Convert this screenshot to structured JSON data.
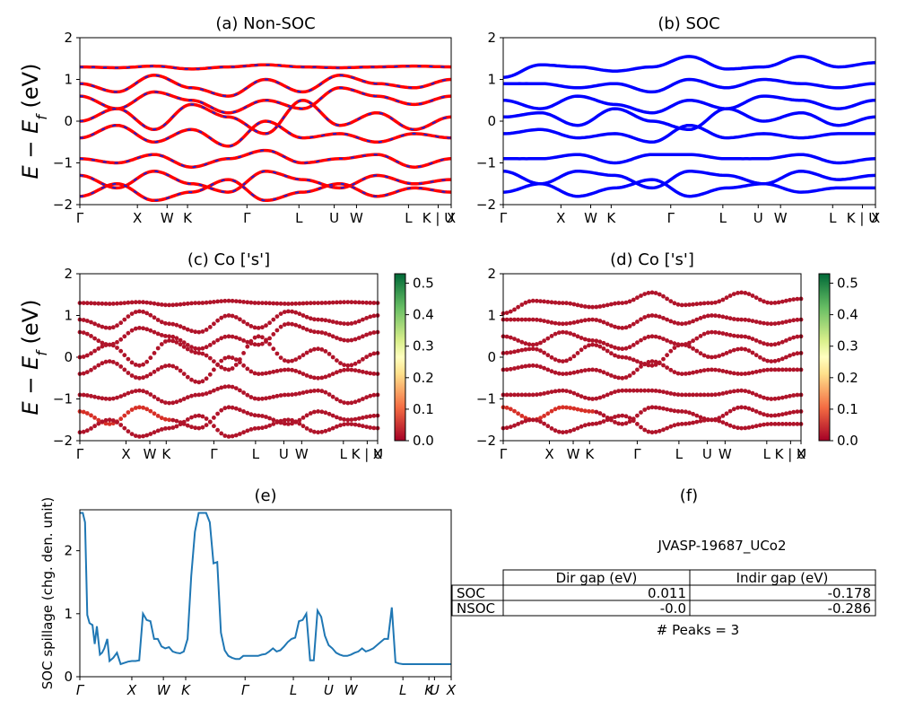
{
  "chart_data": [
    {
      "id": "a",
      "type": "line",
      "title": "(a) Non-SOC",
      "ylabel": "E − E_f (eV)",
      "ylim": [
        -2,
        2
      ],
      "yticks": [
        "−2",
        "−1",
        "0",
        "1",
        "2"
      ],
      "xticks": [
        "Γ",
        "X",
        "W",
        "K",
        "Γ",
        "L",
        "U",
        "W",
        "L",
        "K | U",
        "X"
      ],
      "series": [
        {
          "color": "#ff0000",
          "values": [
            1.3,
            1.28,
            1.32,
            1.25,
            1.3,
            1.35,
            1.3,
            1.28,
            1.3,
            1.32,
            1.3
          ]
        },
        {
          "color": "#ff0000",
          "values": [
            0.9,
            0.7,
            1.1,
            0.8,
            0.6,
            1.0,
            0.7,
            1.1,
            0.9,
            0.8,
            1.0
          ]
        },
        {
          "color": "#ff0000",
          "values": [
            0.6,
            0.3,
            0.7,
            0.5,
            0.2,
            0.5,
            0.3,
            0.8,
            0.6,
            0.4,
            0.6
          ]
        },
        {
          "color": "#ff0000",
          "values": [
            0.0,
            0.3,
            -0.2,
            0.4,
            0.1,
            -0.3,
            0.5,
            -0.1,
            0.2,
            -0.2,
            0.1
          ]
        },
        {
          "color": "#ff0000",
          "values": [
            -0.4,
            -0.1,
            -0.5,
            -0.2,
            -0.6,
            0.0,
            -0.4,
            -0.3,
            -0.5,
            -0.3,
            -0.4
          ]
        },
        {
          "color": "#ff0000",
          "values": [
            -0.9,
            -1.0,
            -0.8,
            -1.1,
            -0.9,
            -0.7,
            -1.0,
            -0.9,
            -0.8,
            -1.1,
            -0.9
          ]
        },
        {
          "color": "#ff0000",
          "values": [
            -1.3,
            -1.6,
            -1.2,
            -1.5,
            -1.7,
            -1.2,
            -1.4,
            -1.6,
            -1.3,
            -1.5,
            -1.4
          ]
        },
        {
          "color": "#ff0000",
          "values": [
            -1.8,
            -1.5,
            -1.9,
            -1.7,
            -1.4,
            -1.9,
            -1.7,
            -1.5,
            -1.8,
            -1.6,
            -1.7
          ]
        }
      ]
    },
    {
      "id": "b",
      "type": "line",
      "title": "(b) SOC",
      "ylim": [
        -2,
        2
      ],
      "yticks": [
        "−2",
        "−1",
        "0",
        "1",
        "2"
      ],
      "xticks": [
        "Γ",
        "X",
        "W",
        "K",
        "Γ",
        "L",
        "U",
        "W",
        "L",
        "K | U",
        "X"
      ],
      "series": [
        {
          "color": "#0000ff",
          "values": [
            1.05,
            1.35,
            1.3,
            1.2,
            1.3,
            1.55,
            1.25,
            1.3,
            1.55,
            1.3,
            1.4
          ]
        },
        {
          "color": "#0000ff",
          "values": [
            0.9,
            0.9,
            0.8,
            0.9,
            0.7,
            1.0,
            0.8,
            1.0,
            0.9,
            0.8,
            0.9
          ]
        },
        {
          "color": "#0000ff",
          "values": [
            0.5,
            0.3,
            0.6,
            0.4,
            0.2,
            0.5,
            0.3,
            0.6,
            0.5,
            0.3,
            0.5
          ]
        },
        {
          "color": "#0000ff",
          "values": [
            0.1,
            0.2,
            -0.1,
            0.3,
            0.0,
            -0.2,
            0.3,
            0.0,
            0.2,
            -0.1,
            0.1
          ]
        },
        {
          "color": "#0000ff",
          "values": [
            -0.3,
            -0.2,
            -0.4,
            -0.3,
            -0.5,
            -0.1,
            -0.4,
            -0.3,
            -0.4,
            -0.3,
            -0.3
          ]
        },
        {
          "color": "#0000ff",
          "values": [
            -0.9,
            -0.9,
            -0.8,
            -1.0,
            -0.8,
            -0.8,
            -0.9,
            -0.9,
            -0.8,
            -1.0,
            -0.9
          ]
        },
        {
          "color": "#0000ff",
          "values": [
            -1.2,
            -1.5,
            -1.2,
            -1.3,
            -1.6,
            -1.2,
            -1.3,
            -1.5,
            -1.2,
            -1.4,
            -1.3
          ]
        },
        {
          "color": "#0000ff",
          "values": [
            -1.7,
            -1.5,
            -1.8,
            -1.6,
            -1.4,
            -1.8,
            -1.6,
            -1.5,
            -1.7,
            -1.6,
            -1.6
          ]
        }
      ]
    },
    {
      "id": "c",
      "type": "scatter",
      "title": "(c)  Co ['s']",
      "ylabel": "E − E_f (eV)",
      "ylim": [
        -2,
        2
      ],
      "yticks": [
        "−2",
        "−1",
        "0",
        "1",
        "2"
      ],
      "xticks": [
        "Γ",
        "X",
        "W",
        "K",
        "Γ",
        "L",
        "U",
        "W",
        "L",
        "K | U",
        "X"
      ],
      "colorbar": {
        "min": 0.0,
        "max": 0.53,
        "ticks": [
          "0.0",
          "0.1",
          "0.2",
          "0.3",
          "0.4",
          "0.5"
        ]
      },
      "series": [
        {
          "values": [
            1.3,
            1.28,
            1.32,
            1.25,
            1.3,
            1.35,
            1.3,
            1.28,
            1.3,
            1.32,
            1.3
          ]
        },
        {
          "values": [
            0.9,
            0.7,
            1.1,
            0.8,
            0.6,
            1.0,
            0.7,
            1.1,
            0.9,
            0.8,
            1.0
          ]
        },
        {
          "values": [
            0.6,
            0.3,
            0.7,
            0.5,
            0.2,
            0.5,
            0.3,
            0.8,
            0.6,
            0.4,
            0.6
          ]
        },
        {
          "values": [
            0.0,
            0.3,
            -0.2,
            0.4,
            0.1,
            -0.3,
            0.5,
            -0.1,
            0.2,
            -0.2,
            0.1
          ]
        },
        {
          "values": [
            -0.4,
            -0.1,
            -0.5,
            -0.2,
            -0.6,
            0.0,
            -0.4,
            -0.3,
            -0.5,
            -0.3,
            -0.4
          ]
        },
        {
          "values": [
            -0.9,
            -1.0,
            -0.8,
            -1.1,
            -0.9,
            -0.7,
            -1.0,
            -0.9,
            -0.8,
            -1.1,
            -0.9
          ]
        },
        {
          "values": [
            -1.3,
            -1.6,
            -1.2,
            -1.5,
            -1.7,
            -1.2,
            -1.4,
            -1.6,
            -1.3,
            -1.5,
            -1.4
          ]
        },
        {
          "values": [
            -1.8,
            -1.5,
            -1.9,
            -1.7,
            -1.4,
            -1.9,
            -1.7,
            -1.5,
            -1.8,
            -1.6,
            -1.7
          ]
        }
      ]
    },
    {
      "id": "d",
      "type": "scatter",
      "title": "(d) Co ['s']",
      "ylim": [
        -2,
        2
      ],
      "yticks": [
        "−2",
        "−1",
        "0",
        "1",
        "2"
      ],
      "xticks": [
        "Γ",
        "X",
        "W",
        "K",
        "Γ",
        "L",
        "U",
        "W",
        "L",
        "K | U",
        "X"
      ],
      "colorbar": {
        "min": 0.0,
        "max": 0.53,
        "ticks": [
          "0.0",
          "0.1",
          "0.2",
          "0.3",
          "0.4",
          "0.5"
        ]
      },
      "series": [
        {
          "values": [
            1.05,
            1.35,
            1.3,
            1.2,
            1.3,
            1.55,
            1.25,
            1.3,
            1.55,
            1.3,
            1.4
          ]
        },
        {
          "values": [
            0.9,
            0.9,
            0.8,
            0.9,
            0.7,
            1.0,
            0.8,
            1.0,
            0.9,
            0.8,
            0.9
          ]
        },
        {
          "values": [
            0.5,
            0.3,
            0.6,
            0.4,
            0.2,
            0.5,
            0.3,
            0.6,
            0.5,
            0.3,
            0.5
          ]
        },
        {
          "values": [
            0.1,
            0.2,
            -0.1,
            0.3,
            0.0,
            -0.2,
            0.3,
            0.0,
            0.2,
            -0.1,
            0.1
          ]
        },
        {
          "values": [
            -0.3,
            -0.2,
            -0.4,
            -0.3,
            -0.5,
            -0.1,
            -0.4,
            -0.3,
            -0.4,
            -0.3,
            -0.3
          ]
        },
        {
          "values": [
            -0.9,
            -0.9,
            -0.8,
            -1.0,
            -0.8,
            -0.8,
            -0.9,
            -0.9,
            -0.8,
            -1.0,
            -0.9
          ]
        },
        {
          "values": [
            -1.2,
            -1.5,
            -1.2,
            -1.3,
            -1.6,
            -1.2,
            -1.3,
            -1.5,
            -1.2,
            -1.4,
            -1.3
          ]
        },
        {
          "values": [
            -1.7,
            -1.5,
            -1.8,
            -1.6,
            -1.4,
            -1.8,
            -1.6,
            -1.5,
            -1.7,
            -1.6,
            -1.6
          ]
        }
      ]
    },
    {
      "id": "e",
      "type": "line",
      "title": "(e)",
      "ylabel": "SOC spillage (chg. den. unit)",
      "ylim": [
        0,
        2.65
      ],
      "yticks": [
        "0",
        "1",
        "2"
      ],
      "xticks": [
        "Γ",
        "X",
        "W",
        "K",
        "Γ",
        "L",
        "U",
        "W",
        "L",
        "K",
        "U",
        "X"
      ],
      "series": [
        {
          "color": "#1f77b4",
          "x": [
            0,
            0.04,
            0.07,
            0.1,
            0.13,
            0.17,
            0.2,
            0.23,
            0.27,
            0.3,
            0.33,
            0.37,
            0.4,
            0.45,
            0.5,
            0.55,
            0.6,
            0.65,
            0.7,
            0.75,
            0.8,
            0.85,
            0.9,
            0.95,
            1.0,
            1.05,
            1.1,
            1.15,
            1.2,
            1.25,
            1.3,
            1.35,
            1.4,
            1.45,
            1.5,
            1.55,
            1.6,
            1.65,
            1.7,
            1.75,
            1.8,
            1.85,
            1.9,
            1.95,
            2.0,
            2.05,
            2.1,
            2.15,
            2.2,
            2.25,
            2.3,
            2.35,
            2.4,
            2.45,
            2.5,
            2.55,
            2.6,
            2.65,
            2.7,
            2.75,
            2.8,
            2.85,
            2.9,
            2.95,
            3.0,
            3.05,
            3.1,
            3.15,
            3.2,
            3.25,
            3.3,
            3.35,
            3.4,
            3.45,
            3.5,
            3.55,
            3.6,
            3.65,
            3.7,
            3.75,
            3.8,
            3.85,
            3.9,
            3.95,
            4.0,
            4.05,
            4.1,
            4.15,
            4.2,
            4.25,
            4.3,
            4.35,
            4.4,
            4.45,
            4.5,
            4.55,
            4.6,
            4.65,
            4.7,
            4.75,
            4.8,
            4.85,
            4.9,
            4.95,
            5.0
          ],
          "values": [
            2.6,
            2.6,
            2.45,
            0.98,
            0.85,
            0.82,
            0.52,
            0.8,
            0.35,
            0.38,
            0.45,
            0.6,
            0.25,
            0.3,
            0.38,
            0.2,
            0.22,
            0.24,
            0.25,
            0.25,
            0.26,
            1.0,
            0.9,
            0.88,
            0.6,
            0.6,
            0.48,
            0.45,
            0.47,
            0.4,
            0.38,
            0.37,
            0.4,
            0.6,
            1.6,
            2.3,
            2.6,
            2.6,
            2.6,
            2.45,
            1.8,
            1.82,
            0.7,
            0.42,
            0.33,
            0.3,
            0.28,
            0.28,
            0.33,
            0.33,
            0.33,
            0.33,
            0.33,
            0.35,
            0.36,
            0.4,
            0.45,
            0.4,
            0.42,
            0.48,
            0.55,
            0.6,
            0.62,
            0.88,
            0.9,
            1.0,
            0.26,
            0.26,
            1.05,
            0.95,
            0.65,
            0.5,
            0.45,
            0.38,
            0.35,
            0.33,
            0.33,
            0.35,
            0.38,
            0.4,
            0.45,
            0.4,
            0.42,
            0.45,
            0.5,
            0.55,
            0.6,
            0.6,
            1.1,
            0.23,
            0.21,
            0.2,
            0.2,
            0.2,
            0.2,
            0.2,
            0.2,
            0.2,
            0.2,
            0.2,
            0.2,
            0.2,
            0.2,
            0.2,
            0.2
          ]
        }
      ]
    },
    {
      "id": "f",
      "type": "table",
      "title": "(f)",
      "subtitle": "JVASP-19687_UCo2",
      "columns": [
        "",
        "Dir gap (eV)",
        "Indir gap (eV)"
      ],
      "rows": [
        [
          "SOC",
          "0.011",
          "-0.178"
        ],
        [
          "NSOC",
          "-0.0",
          "-0.286"
        ]
      ],
      "footer": "# Peaks = 3"
    }
  ]
}
